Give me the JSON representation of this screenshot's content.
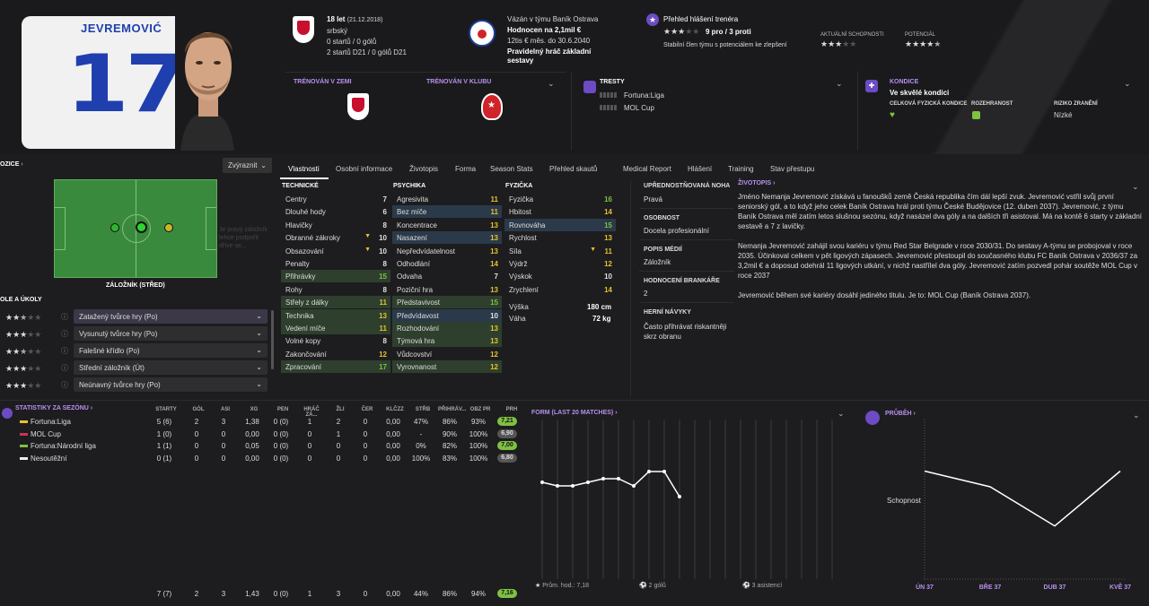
{
  "header": {
    "player_surname": "JEVREMOVIĆ",
    "shirt_number": "17",
    "age": "18 let",
    "dob": "(21.12.2018)",
    "nationality": "srbský",
    "nat_caps": "0 startů / 0 gólů",
    "u21_caps": "2 startů D21 / 0 gólů D21",
    "club_line1": "Vázán v týmu Baník Ostrava",
    "club_line2": "Hodnocen na 2,1mil €",
    "club_line3": "12tis € měs. do 30.6.2040",
    "club_line4": "Pravidelný hráč základní",
    "club_line5": "sestavy",
    "coach_title": "Přehled hlášení trenéra",
    "coach_votes": "9 pro / 3 proti",
    "coach_desc": "Stabilní člen týmu s potenciálem ke zlepšení",
    "current_ability_label": "AKTUÁLNÍ SCHOPNOSTI",
    "current_ability_stars": 3,
    "potential_label": "POTENCIÁL",
    "potential_stars": 4.5,
    "trained_country_label": "TRÉNOVÁN V ZEMI",
    "trained_club_label": "TRÉNOVÁN V KLUBU",
    "bans_label": "TRESTY",
    "ban1": "Fortuna:Liga",
    "ban2": "MOL Cup",
    "condition_label": "KONDICE",
    "condition_value": "Ve skvělé kondici",
    "fitness_label": "CELKOVÁ FYZICKÁ KONDICE",
    "sharpness_label": "ROZEHRANOST",
    "injury_label": "RIZIKO ZRANĚNÍ",
    "injury_value": "Nízké",
    "colors": {
      "accent": "#b88ff0",
      "green": "#7ec143",
      "yellow": "#e6c22e",
      "shirt_blue": "#1f3fae"
    }
  },
  "left": {
    "position_label": "OZICE",
    "highlight_button": "Zvýraznit",
    "position_name": "ZÁLOŽNÍK (STŘED)",
    "roles_label": "OLE A ÚKOLY",
    "roles": [
      {
        "name": "Zatažený tvůrce hry (Po)",
        "stars": 2.5
      },
      {
        "name": "Vysunutý tvůrce hry (Po)",
        "stars": 3
      },
      {
        "name": "Falešné křídlo (Po)",
        "stars": 2.5
      },
      {
        "name": "Střední záložník (Út)",
        "stars": 3
      },
      {
        "name": "Neúnavný tvůrce hry (Po)",
        "stars": 3
      }
    ],
    "ghost_text": [
      "Je pravý záložník",
      "lehce podpořit",
      "dříve se..."
    ]
  },
  "tabs": [
    "Vlastnosti",
    "Osobní informace",
    "Životopis",
    "Forma",
    "Season Stats",
    "Přehled skautů",
    "Medical Report",
    "Hlášení",
    "Training",
    "Stav přestupu"
  ],
  "attributes": {
    "technical_label": "TECHNICKÉ",
    "mental_label": "PSYCHIKA",
    "physical_label": "FYZIČKA",
    "technical": [
      [
        "Centry",
        "7"
      ],
      [
        "Dlouhé hody",
        "6"
      ],
      [
        "Hlavičky",
        "8"
      ],
      [
        "Obranné zákroky",
        "10"
      ],
      [
        "Obsazování",
        "10"
      ],
      [
        "Penalty",
        "8"
      ],
      [
        "Přihrávky",
        "15"
      ],
      [
        "Rohy",
        "8"
      ],
      [
        "Střely z dálky",
        "11"
      ],
      [
        "Technika",
        "13"
      ],
      [
        "Vedení míče",
        "11"
      ],
      [
        "Volné kopy",
        "8"
      ],
      [
        "Zakončování",
        "12"
      ],
      [
        "Zpracování",
        "17"
      ]
    ],
    "mental": [
      [
        "Agresivita",
        "11"
      ],
      [
        "Bez míče",
        "11"
      ],
      [
        "Koncentrace",
        "13"
      ],
      [
        "Nasazení",
        "13"
      ],
      [
        "Nepředvídatelnost",
        "13"
      ],
      [
        "Odhodlání",
        "14"
      ],
      [
        "Odvaha",
        "7"
      ],
      [
        "Poziční hra",
        "13"
      ],
      [
        "Představivost",
        "15"
      ],
      [
        "Předvídavost",
        "10"
      ],
      [
        "Rozhodování",
        "13"
      ],
      [
        "Týmová hra",
        "13"
      ],
      [
        "Vůdcovství",
        "12"
      ],
      [
        "Vyrovnanost",
        "12"
      ]
    ],
    "physical": [
      [
        "Fyzička",
        "16"
      ],
      [
        "Hbitost",
        "14"
      ],
      [
        "Rovnováha",
        "15"
      ],
      [
        "Rychlost",
        "13"
      ],
      [
        "Síla",
        "11"
      ],
      [
        "Výdrž",
        "12"
      ],
      [
        "Výskok",
        "10"
      ],
      [
        "Zrychlení",
        "14"
      ]
    ],
    "height_label": "Výška",
    "height": "180 cm",
    "weight_label": "Váha",
    "weight": "72 kg"
  },
  "info": {
    "foot_label": "UPŘEDNOSTŇOVANÁ NOHA",
    "foot": "Pravá",
    "personality_label": "OSOBNOST",
    "personality": "Docela profesionální",
    "media_label": "POPIS MÉDIÍ",
    "media": "Záložník",
    "gk_label": "HODNOCENÍ BRANKÁŘE",
    "gk": "2",
    "habits_label": "HERNÍ NÁVYKY",
    "habits": "Často přihrávat riskantněji skrz obranu"
  },
  "bio": {
    "label": "ŽIVOTOPIS",
    "p1": "Jméno Nemanja Jevremović získává u fanoušků země Česká republika čím dál lepší zvuk. Jevremović vstřil svůj první seniorský gól, a to když jeho celek Baník Ostrava hrál proti týmu České Budějovice (12. duben 2037). Jevremović, z týmu Baník Ostrava měl zatím letos slušnou sezónu, když nasázel dva góly a na dalších tři asistoval. Má na kontě 6 starty v základní sestavě a 7 z lavičky.",
    "p2": "Nemanja Jevremović zahájil svou kariéru v týmu Red Star Belgrade v roce 2030/31. Do sestavy A-týmu se probojoval v roce 2035. Účinkoval celkem v pět ligových zápasech. Jevremović přestoupil do současného klubu FC Baník Ostrava v 2036/37 za 3,2mil € a doposud odehrál 11 ligových utkání, v nichž nastřílel dva góly. Jevremović zatím pozvedl pohár soutěže MOL Cup v roce 2037",
    "p3": "Jevremović během své kariéry dosáhl jediného titulu. Je to: MOL Cup (Baník Ostrava 2037)."
  },
  "stats": {
    "label": "STATISTIKY ZA SEZÓNU",
    "headers": [
      "STARTY",
      "GÓL",
      "ASI",
      "XG",
      "PEN",
      "HRÁČ ZÁ...",
      "ŽLI",
      "ČER",
      "KLČZZ",
      "STŘB",
      "PŘIHRÁV...",
      "OBZ PR",
      "PRH"
    ],
    "rows": [
      {
        "comp": "Fortuna:Liga",
        "vals": [
          "5 (6)",
          "2",
          "3",
          "1,38",
          "0 (0)",
          "1",
          "2",
          "0",
          "0,00",
          "47%",
          "86%",
          "93%"
        ],
        "rating": "7,21",
        "rc": "#7ec143"
      },
      {
        "comp": "MOL Cup",
        "vals": [
          "1 (0)",
          "0",
          "0",
          "0,00",
          "0 (0)",
          "0",
          "1",
          "0",
          "0,00",
          "-",
          "90%",
          "100%"
        ],
        "rating": "6,90",
        "rc": "#555"
      },
      {
        "comp": "Fortuna:Národní liga",
        "vals": [
          "1 (1)",
          "0",
          "0",
          "0,05",
          "0 (0)",
          "0",
          "0",
          "0",
          "0,00",
          "0%",
          "82%",
          "100%"
        ],
        "rating": "7,00",
        "rc": "#7ec143"
      },
      {
        "comp": "Nesoutěžní",
        "vals": [
          "0 (1)",
          "0",
          "0",
          "0,00",
          "0 (0)",
          "0",
          "0",
          "0",
          "0,00",
          "100%",
          "83%",
          "100%"
        ],
        "rating": "6,80",
        "rc": "#555"
      }
    ],
    "total": {
      "vals": [
        "7 (7)",
        "2",
        "3",
        "1,43",
        "0 (0)",
        "1",
        "3",
        "0",
        "0,00",
        "44%",
        "86%",
        "94%"
      ],
      "rating": "7,16"
    }
  },
  "form": {
    "label": "FORM (LAST 20 MATCHES)",
    "avg": "Prům. hod.: 7,18",
    "goals": "2 gólů",
    "assists": "3 asistencí",
    "chart_data": {
      "type": "line",
      "values": [
        7.0,
        6.9,
        6.9,
        7.0,
        7.1,
        7.1,
        6.9,
        7.3,
        7.3,
        6.6
      ]
    }
  },
  "progress": {
    "label": "PRŮBĚH",
    "ylabel": "Schopnost",
    "chart_data": {
      "type": "line",
      "categories": [
        "ÚN 37",
        "BŘE 37",
        "DUB 37",
        "KVĚ 37"
      ],
      "values": [
        110,
        100,
        75,
        110
      ]
    }
  }
}
